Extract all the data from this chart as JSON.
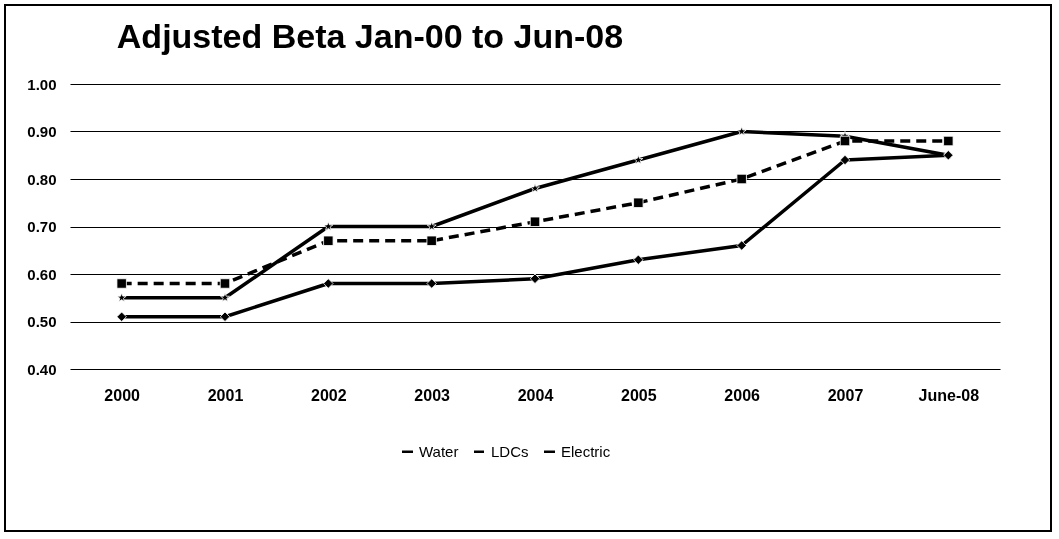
{
  "chart_data": {
    "type": "line",
    "title": "Adjusted Beta Jan-00 to Jun-08",
    "categories": [
      "2000",
      "2001",
      "2002",
      "2003",
      "2004",
      "2005",
      "2006",
      "2007",
      "June-08"
    ],
    "series": [
      {
        "name": "Water",
        "color": "#000000",
        "marker": "diamond",
        "line_style": "solid",
        "values": [
          0.51,
          0.51,
          0.58,
          0.58,
          0.59,
          0.63,
          0.66,
          0.84,
          0.85
        ]
      },
      {
        "name": "LDCs",
        "color": "#000000",
        "marker": "square",
        "line_style": "dashed",
        "values": [
          0.58,
          0.58,
          0.67,
          0.67,
          0.71,
          0.75,
          0.8,
          0.88,
          0.88
        ]
      },
      {
        "name": "Electric",
        "color": "#000000",
        "marker": "star",
        "line_style": "solid",
        "values": [
          0.55,
          0.55,
          0.7,
          0.7,
          0.78,
          0.84,
          0.9,
          0.89,
          0.85
        ]
      }
    ],
    "ylim": [
      0.4,
      1.0
    ],
    "yticks": [
      {
        "value": 0.4,
        "label": "0.40"
      },
      {
        "value": 0.5,
        "label": "0.50"
      },
      {
        "value": 0.6,
        "label": "0.60"
      },
      {
        "value": 0.7,
        "label": "0.70"
      },
      {
        "value": 0.8,
        "label": "0.80"
      },
      {
        "value": 0.9,
        "label": "0.90"
      },
      {
        "value": 1.0,
        "label": "1.00"
      }
    ],
    "grid": "y",
    "legend": "bottom"
  }
}
